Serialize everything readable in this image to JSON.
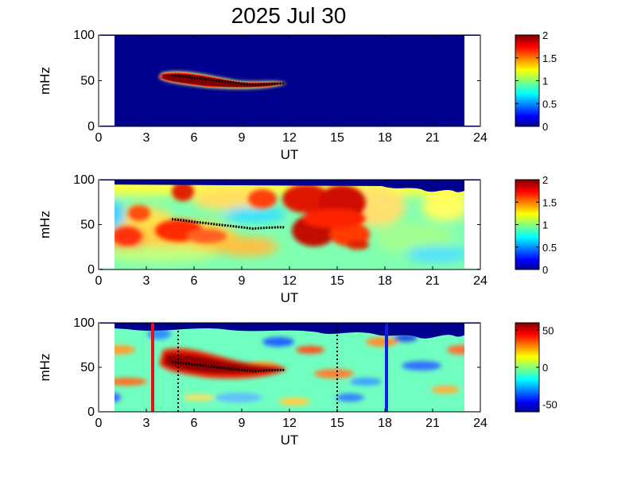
{
  "title": "2025 Jul 30",
  "chart_data": [
    {
      "type": "heatmap",
      "panel": 1,
      "xlabel": "UT",
      "ylabel": "mHz",
      "xlim": [
        0,
        24
      ],
      "ylim": [
        0,
        100
      ],
      "x_ticks": [
        "0",
        "3",
        "6",
        "9",
        "12",
        "15",
        "18",
        "21",
        "24"
      ],
      "y_ticks": [
        "0",
        "50",
        "100"
      ],
      "data_range_ut": [
        1,
        23
      ],
      "colorbar": {
        "min": 0,
        "max": 2,
        "ticks": [
          "0",
          "0.5",
          "1",
          "1.5",
          "2"
        ]
      },
      "background_value": 0,
      "features": [
        {
          "label": "narrow band",
          "ut": [
            4.6,
            6,
            7.5,
            9,
            10.5,
            11.7
          ],
          "mhz": [
            56,
            53,
            50,
            47,
            46.5,
            47
          ],
          "value": 2
        }
      ]
    },
    {
      "type": "heatmap",
      "panel": 2,
      "xlabel": "UT",
      "ylabel": "mHz",
      "xlim": [
        0,
        24
      ],
      "ylim": [
        0,
        100
      ],
      "x_ticks": [
        "0",
        "3",
        "6",
        "9",
        "12",
        "15",
        "18",
        "21",
        "24"
      ],
      "y_ticks": [
        "0",
        "50",
        "100"
      ],
      "data_range_ut": [
        1,
        23
      ],
      "colorbar": {
        "min": 0,
        "max": 2,
        "ticks": [
          "0",
          "0.5",
          "1",
          "1.5",
          "2"
        ]
      },
      "background_value": 0.9,
      "features": [
        {
          "label": "enhancement",
          "ut": [
            12,
            16.5
          ],
          "mhz": [
            25,
            95
          ],
          "value": 1.9
        },
        {
          "label": "enhancement",
          "ut": [
            4.5,
            7.5
          ],
          "mhz": [
            35,
            60
          ],
          "value": 1.8
        },
        {
          "label": "enhancement",
          "ut": [
            5.5,
            6.5
          ],
          "mhz": [
            85,
            98
          ],
          "value": 1.9
        },
        {
          "label": "enhancement",
          "ut": [
            2.5,
            3.5
          ],
          "mhz": [
            30,
            50
          ],
          "value": 1.7
        }
      ]
    },
    {
      "type": "heatmap",
      "panel": 3,
      "xlabel": "UT",
      "ylabel": "mHz",
      "xlim": [
        0,
        24
      ],
      "ylim": [
        0,
        100
      ],
      "x_ticks": [
        "0",
        "3",
        "6",
        "9",
        "12",
        "15",
        "18",
        "21",
        "24"
      ],
      "y_ticks": [
        "0",
        "50",
        "100"
      ],
      "data_range_ut": [
        1,
        23
      ],
      "colorbar": {
        "min": -60,
        "max": 60,
        "ticks": [
          "50",
          "0",
          "-50"
        ]
      },
      "background_value": 0,
      "vertical_lines": [
        {
          "ut": 3.4,
          "color": "#e8101a",
          "style": "solid"
        },
        {
          "ut": 18.1,
          "color": "#1020e0",
          "style": "solid"
        },
        {
          "ut": 5.0,
          "color": "#000000",
          "style": "dotted"
        },
        {
          "ut": 15.0,
          "color": "#000000",
          "style": "dotted"
        }
      ],
      "features": [
        {
          "label": "positive band",
          "ut": [
            4.8,
            11.5
          ],
          "mhz": [
            38,
            62
          ],
          "value": 60
        }
      ]
    }
  ],
  "ridge_trace": {
    "ut": [
      4.6,
      5.2,
      6.0,
      6.8,
      7.5,
      8.3,
      9.0,
      9.7,
      10.5,
      11.2,
      11.7
    ],
    "mhz": [
      56,
      55,
      53,
      51.5,
      50,
      48.5,
      47,
      45.5,
      46.5,
      47,
      47
    ]
  }
}
